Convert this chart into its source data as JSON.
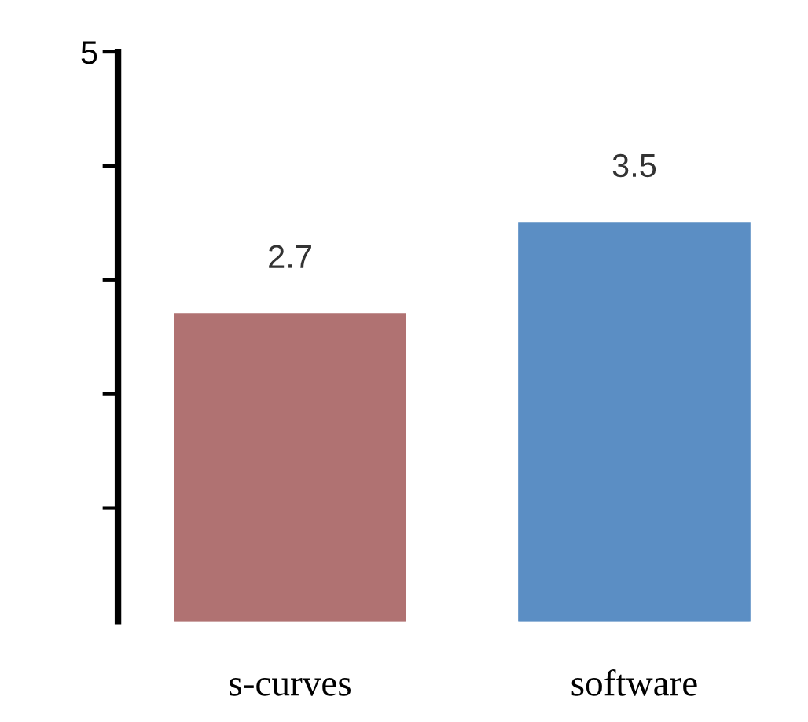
{
  "chart_data": {
    "type": "bar",
    "categories": [
      "s-curves",
      "software"
    ],
    "values": [
      2.7,
      3.5
    ],
    "colors": [
      "#b07272",
      "#5b8ec4"
    ],
    "ylim": [
      0,
      5
    ],
    "yticks": [
      {
        "value": 1,
        "label": null
      },
      {
        "value": 2,
        "label": null
      },
      {
        "value": 3,
        "label": null
      },
      {
        "value": 4,
        "label": null
      },
      5
    ],
    "data_labels": true,
    "grid": false,
    "legend": false
  }
}
